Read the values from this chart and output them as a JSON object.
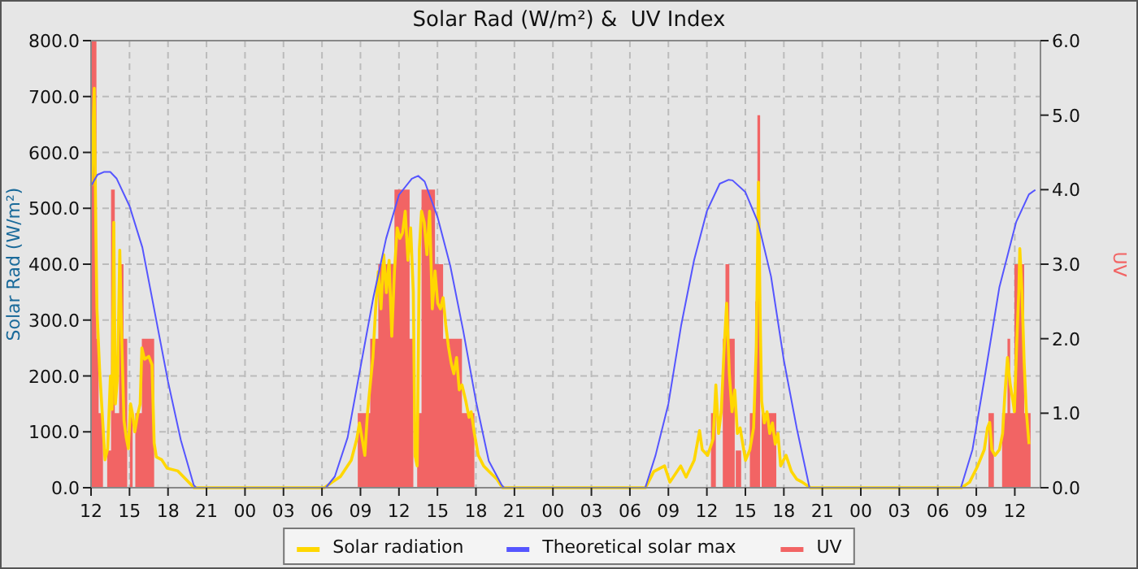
{
  "chart_data": {
    "type": "line",
    "title": "Solar Rad (W/m²) &  UV Index",
    "ylabel": "Solar Rad (W/m²)",
    "y2label": "UV",
    "xlim": [
      12,
      86
    ],
    "xticks": [
      12,
      15,
      18,
      21,
      {
        "value": 24,
        "label": "00"
      },
      {
        "value": 27,
        "label": "03"
      },
      {
        "value": 30,
        "label": "06"
      },
      {
        "value": 33,
        "label": "09"
      },
      {
        "value": 36,
        "label": "12"
      },
      {
        "value": 39,
        "label": "15"
      },
      {
        "value": 42,
        "label": "18"
      },
      {
        "value": 45,
        "label": "21"
      },
      {
        "value": 48,
        "label": "00"
      },
      {
        "value": 51,
        "label": "03"
      },
      {
        "value": 54,
        "label": "06"
      },
      {
        "value": 57,
        "label": "09"
      },
      {
        "value": 60,
        "label": "12"
      },
      {
        "value": 63,
        "label": "15"
      },
      {
        "value": 66,
        "label": "18"
      },
      {
        "value": 69,
        "label": "21"
      },
      {
        "value": 72,
        "label": "00"
      },
      {
        "value": 75,
        "label": "03"
      },
      {
        "value": 78,
        "label": "06"
      },
      {
        "value": 81,
        "label": "09"
      },
      {
        "value": 84,
        "label": "12"
      }
    ],
    "ylim": [
      0,
      800
    ],
    "yticks": [
      {
        "value": 0,
        "label": "0.0"
      },
      {
        "value": 100,
        "label": "100.0"
      },
      {
        "value": 200,
        "label": "200.0"
      },
      {
        "value": 300,
        "label": "300.0"
      },
      {
        "value": 400,
        "label": "400.0"
      },
      {
        "value": 500,
        "label": "500.0"
      },
      {
        "value": 600,
        "label": "600.0"
      },
      {
        "value": 700,
        "label": "700.0"
      },
      {
        "value": 800,
        "label": "800.0"
      }
    ],
    "y2lim": [
      0,
      6
    ],
    "y2ticks": [
      {
        "value": 0,
        "label": "0.0"
      },
      {
        "value": 1,
        "label": "1.0"
      },
      {
        "value": 2,
        "label": "2.0"
      },
      {
        "value": 3,
        "label": "3.0"
      },
      {
        "value": 4,
        "label": "4.0"
      },
      {
        "value": 5,
        "label": "5.0"
      },
      {
        "value": 6,
        "label": "6.0"
      }
    ],
    "grid": true,
    "legend": "bottom",
    "line_style": "solid",
    "series": [
      {
        "name": "Solar radiation",
        "color": "#ffd700",
        "x": [
          12.04,
          12.25,
          12.38,
          12.46,
          12.67,
          12.88,
          13.09,
          13.3,
          13.51,
          13.64,
          13.77,
          13.9,
          14.07,
          14.24,
          14.41,
          14.57,
          14.74,
          14.91,
          15.08,
          15.25,
          15.41,
          15.62,
          15.83,
          15.96,
          16.17,
          16.5,
          16.75,
          16.92,
          17.09,
          17.51,
          17.93,
          18.77,
          19.4,
          20.03,
          30.18,
          30.8,
          31.44,
          32.28,
          32.71,
          32.92,
          33.34,
          33.55,
          33.97,
          34.18,
          34.39,
          34.6,
          34.81,
          35.02,
          35.23,
          35.44,
          35.65,
          35.86,
          36.07,
          36.28,
          36.49,
          36.7,
          36.91,
          37.12,
          37.25,
          37.42,
          37.59,
          37.76,
          37.97,
          38.18,
          38.39,
          38.6,
          38.81,
          39.02,
          39.23,
          39.44,
          39.65,
          39.86,
          40.07,
          40.28,
          40.49,
          40.7,
          40.91,
          41.21,
          41.46,
          41.63,
          41.88,
          42.18,
          42.6,
          43.02,
          43.65,
          44.07,
          55.22,
          55.86,
          56.7,
          57.12,
          57.96,
          58.38,
          59.01,
          59.43,
          59.64,
          60.06,
          60.49,
          60.7,
          60.91,
          61.12,
          61.33,
          61.54,
          61.75,
          61.96,
          62.17,
          62.38,
          62.59,
          63.01,
          63.35,
          63.64,
          63.85,
          64.02,
          64.15,
          64.27,
          64.48,
          64.69,
          64.9,
          65.11,
          65.33,
          65.54,
          65.75,
          66.17,
          66.59,
          67.01,
          67.43,
          68.06,
          79.85,
          80.48,
          81.11,
          81.62,
          81.87,
          82.04,
          82.21,
          82.46,
          82.8,
          83.05,
          83.22,
          83.43,
          83.64,
          83.85,
          83.97,
          84.14,
          84.31,
          84.39,
          84.56,
          84.73,
          84.9,
          85.11
        ],
        "values": [
          540,
          715,
          450,
          320,
          210,
          130,
          50,
          70,
          200,
          140,
          475,
          150,
          200,
          425,
          250,
          120,
          90,
          70,
          150,
          130,
          100,
          130,
          150,
          250,
          230,
          235,
          220,
          80,
          55,
          50,
          35,
          30,
          15,
          0,
          0,
          10,
          20,
          49,
          87,
          116,
          58,
          135,
          233,
          320,
          387,
          320,
          417,
          349,
          407,
          271,
          388,
          465,
          446,
          456,
          495,
          407,
          465,
          349,
          58,
          39,
          427,
          495,
          475,
          417,
          495,
          320,
          388,
          330,
          320,
          340,
          291,
          252,
          223,
          204,
          233,
          175,
          184,
          155,
          126,
          136,
          97,
          58,
          39,
          29,
          15,
          0,
          0,
          29,
          39,
          10,
          39,
          19,
          49,
          102,
          68,
          58,
          87,
          184,
          97,
          136,
          242,
          330,
          204,
          136,
          175,
          97,
          107,
          49,
          68,
          107,
          252,
          547,
          310,
          155,
          116,
          136,
          97,
          116,
          78,
          97,
          39,
          58,
          29,
          15,
          10,
          0,
          0,
          10,
          39,
          68,
          107,
          117,
          68,
          58,
          68,
          97,
          165,
          233,
          185,
          156,
          136,
          253,
          350,
          428,
          350,
          224,
          136,
          78
        ]
      },
      {
        "name": "Theoretical solar max",
        "color": "#5555ff",
        "x": [
          12,
          12.5,
          13,
          13.5,
          14,
          15,
          16,
          17,
          18,
          19,
          20,
          20.2,
          30.3,
          31,
          32,
          33,
          34,
          35,
          36,
          37,
          37.5,
          38,
          39,
          40,
          41,
          42,
          43,
          44,
          44.2,
          55.2,
          56,
          57,
          58,
          59,
          60,
          61,
          61.7,
          62,
          63,
          64,
          65,
          66,
          67,
          68,
          79.8,
          80.7,
          81.7,
          82.8,
          84.1,
          85.1,
          85.6
        ],
        "values": [
          540,
          560,
          565,
          565,
          553,
          504,
          430,
          310,
          190,
          85,
          5,
          0,
          0,
          20,
          90,
          215,
          340,
          446,
          524,
          553,
          558,
          548,
          485,
          397,
          282,
          155,
          48,
          5,
          0,
          0,
          58,
          150,
          291,
          407,
          495,
          544,
          551,
          550,
          529,
          474,
          378,
          228,
          107,
          0,
          0,
          68,
          204,
          359,
          475,
          525,
          533
        ]
      },
      {
        "name": "UV",
        "color": "#f26464",
        "type": "area",
        "axis": "y2",
        "x": [
          12.0,
          12.42,
          12.59,
          12.93,
          13.26,
          13.56,
          13.85,
          14.19,
          14.53,
          14.82,
          15.03,
          15.24,
          15.45,
          15.96,
          16.92,
          32.79,
          33.76,
          34.39,
          35.65,
          36.83,
          37.12,
          37.42,
          37.76,
          38.81,
          39.44,
          40.91,
          41.88,
          60.32,
          60.7,
          61.24,
          61.45,
          61.75,
          62.17,
          62.25,
          62.67,
          63.35,
          63.77,
          63.94,
          64.15,
          64.27,
          65.41,
          81.95,
          82.37,
          83.01,
          83.43,
          83.64,
          83.97,
          84.73,
          85.23,
          85.8
        ],
        "values": [
          6,
          2,
          1,
          0,
          0.5,
          4,
          1,
          3,
          2,
          0,
          1,
          0,
          1,
          2,
          0,
          1,
          2,
          3,
          4,
          2,
          0,
          1,
          4,
          3,
          2,
          1,
          0,
          1,
          0,
          2,
          3,
          2,
          0,
          0.5,
          0,
          1,
          2.5,
          5,
          0,
          1,
          0,
          1,
          0,
          1,
          2,
          1,
          3,
          1,
          0,
          0
        ]
      }
    ]
  }
}
